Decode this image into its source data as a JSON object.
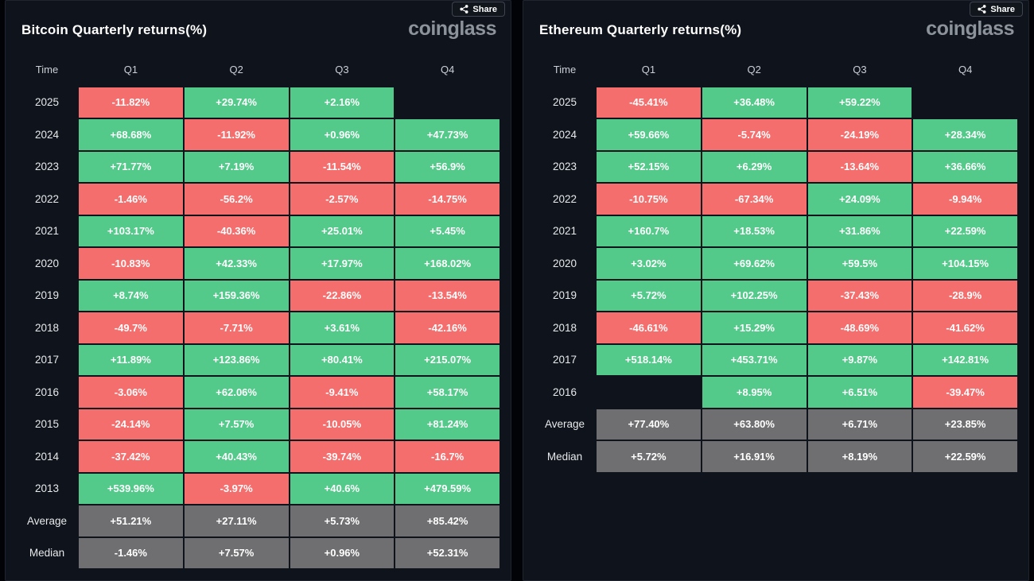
{
  "colors": {
    "positive": "#53C98A",
    "negative": "#F56E6E",
    "summary": "#6F6F71",
    "panel_bg": "#0F131B",
    "page_bg": "#010307",
    "cell_text": "#FFFFFF",
    "brand_text": "#8D939B"
  },
  "panels": [
    {
      "title": "Bitcoin Quarterly returns(%)",
      "share_label": "Share",
      "brand": "coinglass",
      "columns": [
        "Time",
        "Q1",
        "Q2",
        "Q3",
        "Q4"
      ],
      "rows": [
        {
          "label": "2025",
          "values": [
            "-11.82%",
            "+29.74%",
            "+2.16%",
            null
          ]
        },
        {
          "label": "2024",
          "values": [
            "+68.68%",
            "-11.92%",
            "+0.96%",
            "+47.73%"
          ]
        },
        {
          "label": "2023",
          "values": [
            "+71.77%",
            "+7.19%",
            "-11.54%",
            "+56.9%"
          ]
        },
        {
          "label": "2022",
          "values": [
            "-1.46%",
            "-56.2%",
            "-2.57%",
            "-14.75%"
          ]
        },
        {
          "label": "2021",
          "values": [
            "+103.17%",
            "-40.36%",
            "+25.01%",
            "+5.45%"
          ]
        },
        {
          "label": "2020",
          "values": [
            "-10.83%",
            "+42.33%",
            "+17.97%",
            "+168.02%"
          ]
        },
        {
          "label": "2019",
          "values": [
            "+8.74%",
            "+159.36%",
            "-22.86%",
            "-13.54%"
          ]
        },
        {
          "label": "2018",
          "values": [
            "-49.7%",
            "-7.71%",
            "+3.61%",
            "-42.16%"
          ]
        },
        {
          "label": "2017",
          "values": [
            "+11.89%",
            "+123.86%",
            "+80.41%",
            "+215.07%"
          ]
        },
        {
          "label": "2016",
          "values": [
            "-3.06%",
            "+62.06%",
            "-9.41%",
            "+58.17%"
          ]
        },
        {
          "label": "2015",
          "values": [
            "-24.14%",
            "+7.57%",
            "-10.05%",
            "+81.24%"
          ]
        },
        {
          "label": "2014",
          "values": [
            "-37.42%",
            "+40.43%",
            "-39.74%",
            "-16.7%"
          ]
        },
        {
          "label": "2013",
          "values": [
            "+539.96%",
            "-3.97%",
            "+40.6%",
            "+479.59%"
          ]
        },
        {
          "label": "Average",
          "summary": true,
          "values": [
            "+51.21%",
            "+27.11%",
            "+5.73%",
            "+85.42%"
          ]
        },
        {
          "label": "Median",
          "summary": true,
          "values": [
            "-1.46%",
            "+7.57%",
            "+0.96%",
            "+52.31%"
          ]
        }
      ]
    },
    {
      "title": "Ethereum Quarterly returns(%)",
      "share_label": "Share",
      "brand": "coinglass",
      "columns": [
        "Time",
        "Q1",
        "Q2",
        "Q3",
        "Q4"
      ],
      "rows": [
        {
          "label": "2025",
          "values": [
            "-45.41%",
            "+36.48%",
            "+59.22%",
            null
          ]
        },
        {
          "label": "2024",
          "values": [
            "+59.66%",
            "-5.74%",
            "-24.19%",
            "+28.34%"
          ]
        },
        {
          "label": "2023",
          "values": [
            "+52.15%",
            "+6.29%",
            "-13.64%",
            "+36.66%"
          ]
        },
        {
          "label": "2022",
          "values": [
            "-10.75%",
            "-67.34%",
            "+24.09%",
            "-9.94%"
          ]
        },
        {
          "label": "2021",
          "values": [
            "+160.7%",
            "+18.53%",
            "+31.86%",
            "+22.59%"
          ]
        },
        {
          "label": "2020",
          "values": [
            "+3.02%",
            "+69.62%",
            "+59.5%",
            "+104.15%"
          ]
        },
        {
          "label": "2019",
          "values": [
            "+5.72%",
            "+102.25%",
            "-37.43%",
            "-28.9%"
          ]
        },
        {
          "label": "2018",
          "values": [
            "-46.61%",
            "+15.29%",
            "-48.69%",
            "-41.62%"
          ]
        },
        {
          "label": "2017",
          "values": [
            "+518.14%",
            "+453.71%",
            "+9.87%",
            "+142.81%"
          ]
        },
        {
          "label": "2016",
          "values": [
            null,
            "+8.95%",
            "+6.51%",
            "-39.47%"
          ]
        },
        {
          "label": "Average",
          "summary": true,
          "values": [
            "+77.40%",
            "+63.80%",
            "+6.71%",
            "+23.85%"
          ]
        },
        {
          "label": "Median",
          "summary": true,
          "values": [
            "+5.72%",
            "+16.91%",
            "+8.19%",
            "+22.59%"
          ]
        }
      ]
    }
  ],
  "chart_data": [
    {
      "type": "heatmap",
      "title": "Bitcoin Quarterly returns(%)",
      "columns": [
        "Q1",
        "Q2",
        "Q3",
        "Q4"
      ],
      "unit": "%",
      "rows": [
        {
          "time": "2025",
          "values": [
            -11.82,
            29.74,
            2.16,
            null
          ]
        },
        {
          "time": "2024",
          "values": [
            68.68,
            -11.92,
            0.96,
            47.73
          ]
        },
        {
          "time": "2023",
          "values": [
            71.77,
            7.19,
            -11.54,
            56.9
          ]
        },
        {
          "time": "2022",
          "values": [
            -1.46,
            -56.2,
            -2.57,
            -14.75
          ]
        },
        {
          "time": "2021",
          "values": [
            103.17,
            -40.36,
            25.01,
            5.45
          ]
        },
        {
          "time": "2020",
          "values": [
            -10.83,
            42.33,
            17.97,
            168.02
          ]
        },
        {
          "time": "2019",
          "values": [
            8.74,
            159.36,
            -22.86,
            -13.54
          ]
        },
        {
          "time": "2018",
          "values": [
            -49.7,
            -7.71,
            3.61,
            -42.16
          ]
        },
        {
          "time": "2017",
          "values": [
            11.89,
            123.86,
            80.41,
            215.07
          ]
        },
        {
          "time": "2016",
          "values": [
            -3.06,
            62.06,
            -9.41,
            58.17
          ]
        },
        {
          "time": "2015",
          "values": [
            -24.14,
            7.57,
            -10.05,
            81.24
          ]
        },
        {
          "time": "2014",
          "values": [
            -37.42,
            40.43,
            -39.74,
            -16.7
          ]
        },
        {
          "time": "2013",
          "values": [
            539.96,
            -3.97,
            40.6,
            479.59
          ]
        }
      ],
      "average": [
        51.21,
        27.11,
        5.73,
        85.42
      ],
      "median": [
        -1.46,
        7.57,
        0.96,
        52.31
      ],
      "color_coding": {
        "positive": "#53C98A",
        "negative": "#F56E6E",
        "summary": "#6F6F71"
      }
    },
    {
      "type": "heatmap",
      "title": "Ethereum Quarterly returns(%)",
      "columns": [
        "Q1",
        "Q2",
        "Q3",
        "Q4"
      ],
      "unit": "%",
      "rows": [
        {
          "time": "2025",
          "values": [
            -45.41,
            36.48,
            59.22,
            null
          ]
        },
        {
          "time": "2024",
          "values": [
            59.66,
            -5.74,
            -24.19,
            28.34
          ]
        },
        {
          "time": "2023",
          "values": [
            52.15,
            6.29,
            -13.64,
            36.66
          ]
        },
        {
          "time": "2022",
          "values": [
            -10.75,
            -67.34,
            24.09,
            -9.94
          ]
        },
        {
          "time": "2021",
          "values": [
            160.7,
            18.53,
            31.86,
            22.59
          ]
        },
        {
          "time": "2020",
          "values": [
            3.02,
            69.62,
            59.5,
            104.15
          ]
        },
        {
          "time": "2019",
          "values": [
            5.72,
            102.25,
            -37.43,
            -28.9
          ]
        },
        {
          "time": "2018",
          "values": [
            -46.61,
            15.29,
            -48.69,
            -41.62
          ]
        },
        {
          "time": "2017",
          "values": [
            518.14,
            453.71,
            9.87,
            142.81
          ]
        },
        {
          "time": "2016",
          "values": [
            null,
            8.95,
            6.51,
            -39.47
          ]
        }
      ],
      "average": [
        77.4,
        63.8,
        6.71,
        23.85
      ],
      "median": [
        5.72,
        16.91,
        8.19,
        22.59
      ],
      "color_coding": {
        "positive": "#53C98A",
        "negative": "#F56E6E",
        "summary": "#6F6F71"
      }
    }
  ]
}
